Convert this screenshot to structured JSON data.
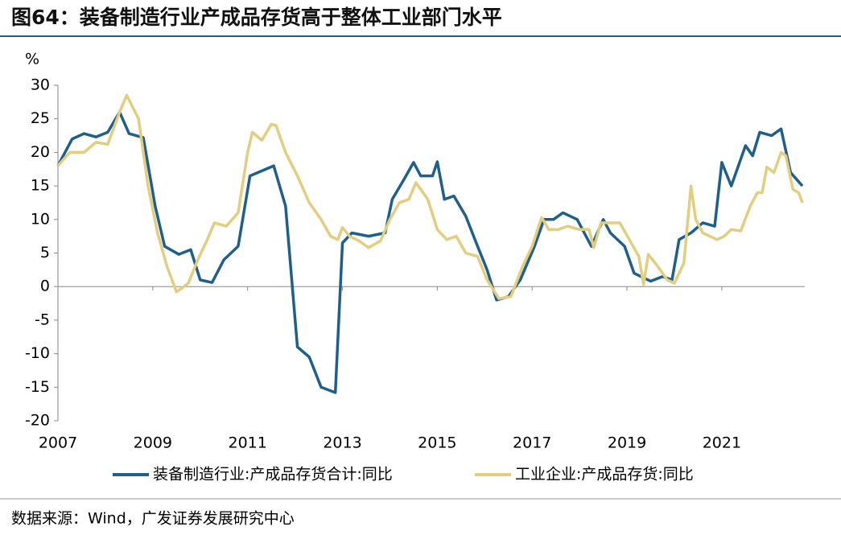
{
  "chart_data": {
    "type": "line",
    "title": "图64：装备制造行业产成品存货高于整体工业部门水平",
    "y_label": "%",
    "source": "数据来源：Wind，广发证券发展研究中心",
    "xlim": [
      2007,
      2022.75
    ],
    "xticks": [
      2007,
      2009,
      2011,
      2013,
      2015,
      2017,
      2019,
      2021
    ],
    "ylim": [
      -20,
      30
    ],
    "yticks": [
      -20,
      -15,
      -10,
      -5,
      0,
      5,
      10,
      15,
      20,
      25,
      30
    ],
    "legend": "bottom",
    "series": [
      {
        "name": "装备制造行业:产成品存货合计:同比",
        "color": "#1f5f8b",
        "x": [
          2007.0,
          2007.3,
          2007.55,
          2007.8,
          2008.05,
          2008.3,
          2008.5,
          2008.8,
          2009.05,
          2009.25,
          2009.55,
          2009.8,
          2010.0,
          2010.25,
          2010.5,
          2010.8,
          2011.05,
          2011.55,
          2011.8,
          2012.05,
          2012.3,
          2012.55,
          2012.85,
          2013.0,
          2013.2,
          2013.55,
          2013.9,
          2014.05,
          2014.3,
          2014.5,
          2014.65,
          2014.9,
          2015.0,
          2015.15,
          2015.35,
          2015.6,
          2015.85,
          2016.05,
          2016.25,
          2016.5,
          2016.75,
          2017.05,
          2017.25,
          2017.45,
          2017.65,
          2017.95,
          2018.25,
          2018.5,
          2018.65,
          2018.95,
          2019.15,
          2019.5,
          2019.75,
          2019.95,
          2020.1,
          2020.35,
          2020.6,
          2020.85,
          2021.0,
          2021.2,
          2021.5,
          2021.65,
          2021.8,
          2022.05,
          2022.25,
          2022.45,
          2022.7
        ],
        "values": [
          18,
          22,
          22.8,
          22.3,
          23,
          26,
          22.8,
          22.2,
          12,
          6,
          4.8,
          5.5,
          1,
          0.6,
          4,
          6,
          16.5,
          18,
          12,
          -9,
          -10.5,
          -15,
          -15.8,
          6.5,
          8,
          7.5,
          8,
          13,
          16,
          18.5,
          16.5,
          16.5,
          18.6,
          13,
          13.5,
          10.5,
          6,
          2.5,
          -2,
          -1.5,
          1,
          6,
          10,
          10,
          11,
          10,
          6,
          10,
          8,
          6,
          2,
          0.8,
          1.5,
          1,
          7,
          8,
          9.5,
          9,
          18.5,
          15,
          21,
          19.5,
          23,
          22.5,
          23.5,
          17,
          15
        ]
      },
      {
        "name": "工业企业:产成品存货:同比",
        "color": "#e3cd7f",
        "x": [
          2007.0,
          2007.25,
          2007.55,
          2007.8,
          2008.05,
          2008.3,
          2008.45,
          2008.7,
          2008.9,
          2009.1,
          2009.3,
          2009.5,
          2009.75,
          2009.95,
          2010.15,
          2010.3,
          2010.55,
          2010.8,
          2011.0,
          2011.1,
          2011.3,
          2011.5,
          2011.6,
          2011.8,
          2012.05,
          2012.3,
          2012.55,
          2012.75,
          2012.9,
          2013.0,
          2013.15,
          2013.35,
          2013.55,
          2013.8,
          2014.0,
          2014.2,
          2014.4,
          2014.55,
          2014.8,
          2015.0,
          2015.2,
          2015.4,
          2015.6,
          2015.85,
          2016.05,
          2016.3,
          2016.55,
          2016.8,
          2017.0,
          2017.2,
          2017.35,
          2017.55,
          2017.75,
          2018.0,
          2018.2,
          2018.3,
          2018.45,
          2018.65,
          2018.85,
          2019.05,
          2019.25,
          2019.35,
          2019.45,
          2019.65,
          2019.85,
          2020.0,
          2020.2,
          2020.35,
          2020.45,
          2020.6,
          2020.75,
          2020.9,
          2021.05,
          2021.2,
          2021.4,
          2021.6,
          2021.75,
          2021.85,
          2021.95,
          2022.1,
          2022.25,
          2022.35,
          2022.5,
          2022.62,
          2022.7
        ],
        "values": [
          18,
          20,
          20,
          21.5,
          21.2,
          26,
          28.5,
          25,
          15,
          8,
          3,
          -0.8,
          0.5,
          4,
          7,
          9.5,
          9,
          11,
          20,
          23,
          21.8,
          24.2,
          24,
          20,
          16.5,
          12.5,
          10,
          7.5,
          7,
          8.8,
          7.5,
          6.8,
          5.8,
          6.8,
          10,
          12.5,
          13,
          15.5,
          13,
          8.5,
          7,
          7.5,
          5,
          4.5,
          1,
          -1.8,
          -1.5,
          3,
          6,
          10.3,
          8.5,
          8.5,
          9,
          8.5,
          8.5,
          5.8,
          9.5,
          9.5,
          9.5,
          7,
          4.5,
          0.3,
          4.8,
          3,
          1,
          0.5,
          3.5,
          15,
          10,
          8,
          7.5,
          7,
          7.5,
          8.5,
          8.3,
          12,
          14,
          14,
          17.8,
          17,
          20,
          19.5,
          14.5,
          14,
          12.5
        ]
      }
    ]
  }
}
